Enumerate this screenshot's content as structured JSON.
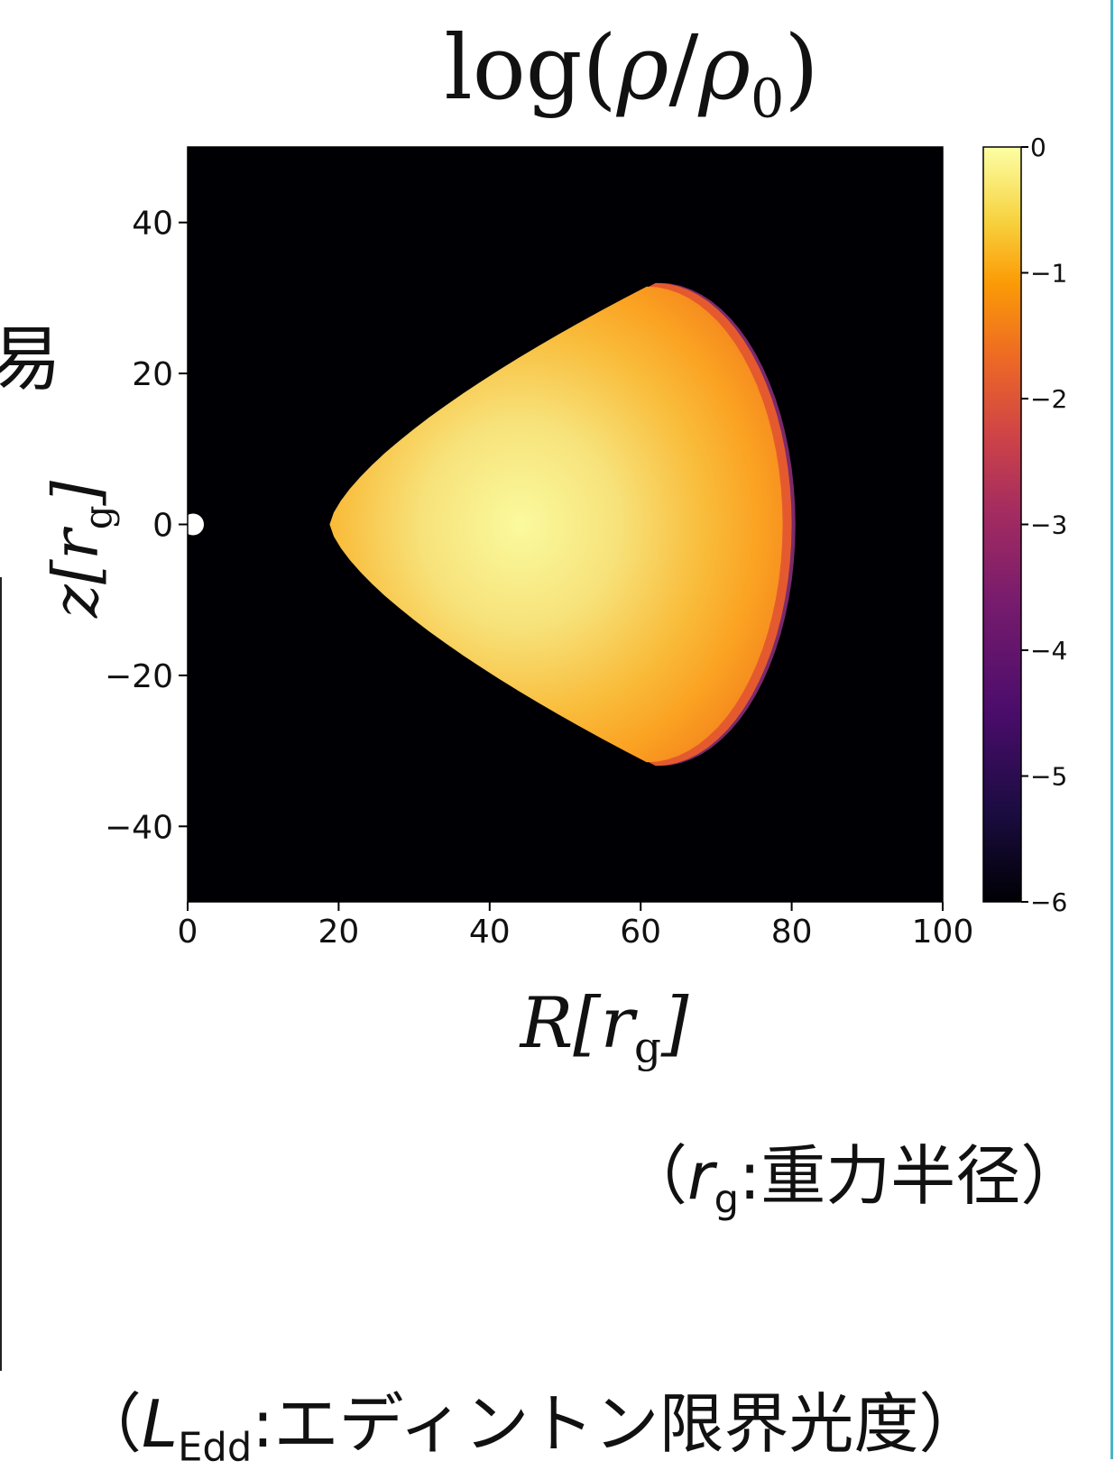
{
  "chart_data": {
    "type": "heatmap",
    "title": "log(ρ/ρ₀)",
    "xlabel": "R[r_g]",
    "ylabel": "z[r_g]",
    "xlim": [
      0,
      100
    ],
    "ylim": [
      -50,
      50
    ],
    "x_ticks": [
      "0",
      "20",
      "40",
      "60",
      "80",
      "100"
    ],
    "y_ticks": [
      "40",
      "20",
      "0",
      "−20",
      "−40"
    ],
    "colorbar": {
      "range": [
        -6,
        0
      ],
      "ticks": [
        "0",
        "−1",
        "−2",
        "−3",
        "−4",
        "−5",
        "−6"
      ],
      "colormap": "inferno"
    },
    "cloud": {
      "inner_edge_R": 20,
      "outer_edge_R": 80,
      "max_abs_z": 32,
      "peak_value": 0,
      "edge_value": -2.5
    },
    "central_object": {
      "R": 0,
      "z": 0
    },
    "grid": false
  },
  "notes": {
    "rg_symbol": "r",
    "rg_sub": "g",
    "rg_text": ":重力半径）",
    "edd_symbol": "L",
    "edd_sub": "Edd",
    "edd_text": ":エディントン限界光度）"
  },
  "side_glyph": "易"
}
